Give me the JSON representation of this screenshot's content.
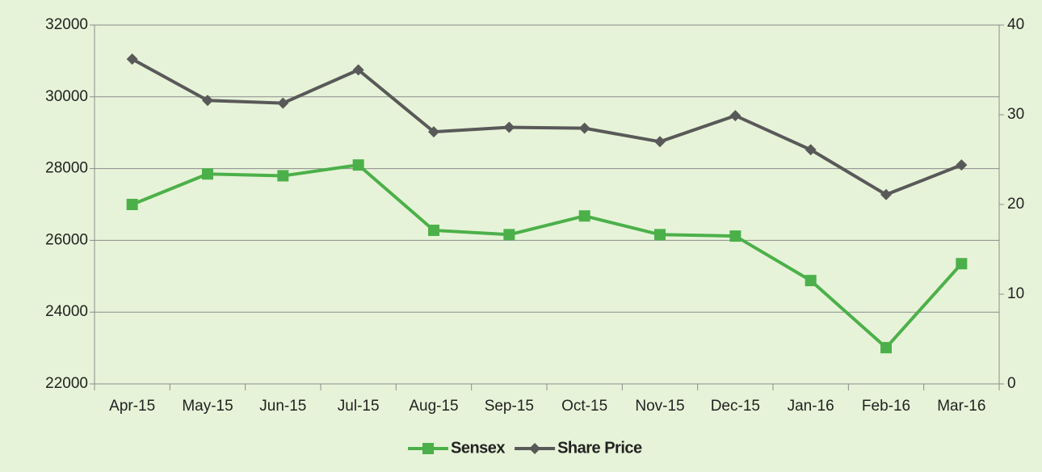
{
  "chart_data": {
    "type": "line",
    "categories": [
      "Apr-15",
      "May-15",
      "Jun-15",
      "Jul-15",
      "Aug-15",
      "Sep-15",
      "Oct-15",
      "Nov-15",
      "Dec-15",
      "Jan-16",
      "Feb-16",
      "Mar-16"
    ],
    "series": [
      {
        "name": "Sensex",
        "color": "#4cb04a",
        "axis": "y",
        "marker": "square",
        "values": [
          27000,
          27850,
          27800,
          28100,
          26280,
          26160,
          26680,
          26160,
          26120,
          24880,
          23010,
          25350
        ]
      },
      {
        "name": "Share Price",
        "color": "#595959",
        "axis": "y2",
        "marker": "diamond",
        "values": [
          36.2,
          31.6,
          31.3,
          35.0,
          28.1,
          28.6,
          28.5,
          27.0,
          29.9,
          26.1,
          21.1,
          24.4
        ]
      }
    ],
    "ylim": [
      22000,
      32000
    ],
    "yticks": [
      22000,
      24000,
      26000,
      28000,
      30000,
      32000
    ],
    "y2lim": [
      0,
      40
    ],
    "y2ticks": [
      0,
      10,
      20,
      30,
      40
    ],
    "grid": true,
    "legend": "bottom"
  }
}
